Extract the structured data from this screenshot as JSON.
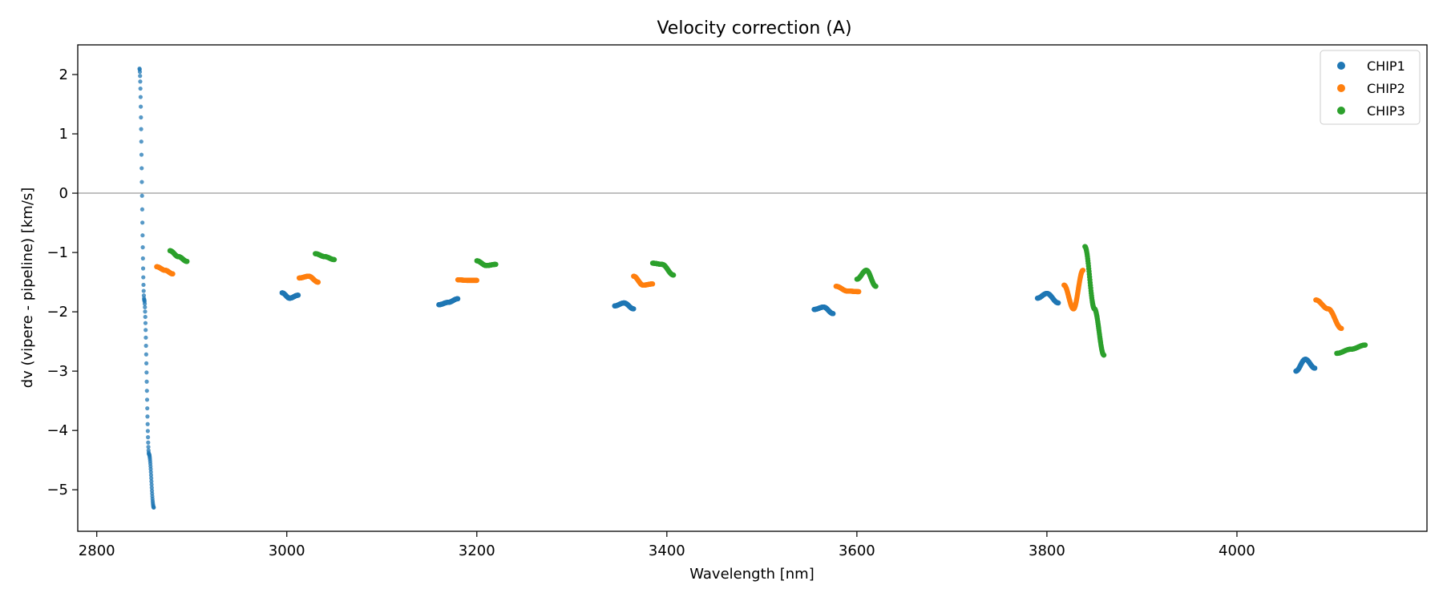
{
  "chart_data": {
    "type": "scatter",
    "title": "Velocity correction (A)",
    "xlabel": "Wavelength [nm]",
    "ylabel": "dv (vipere - pipeline) [km/s]",
    "xlim": [
      2780,
      4200
    ],
    "ylim": [
      -5.7,
      2.5
    ],
    "xticks": [
      2800,
      3000,
      3200,
      3400,
      3600,
      3800,
      4000
    ],
    "yticks": [
      2,
      1,
      0,
      -1,
      -2,
      -3,
      -4,
      -5
    ],
    "xtick_labels": [
      "2800",
      "3000",
      "3200",
      "3400",
      "3600",
      "3800",
      "4000"
    ],
    "ytick_labels": [
      "2",
      "1",
      "0",
      "−1",
      "−2",
      "−3",
      "−4",
      "−5"
    ],
    "reference_line_y": 0,
    "grid": false,
    "legend": {
      "position": "top-right",
      "entries": [
        "CHIP1",
        "CHIP2",
        "CHIP3"
      ]
    },
    "colors": {
      "CHIP1": "#1f77b4",
      "CHIP2": "#ff7f0e",
      "CHIP3": "#2ca02c"
    },
    "series": [
      {
        "name": "CHIP1",
        "segments": [
          {
            "x": [
              2845,
              2850,
              2855,
              2860
            ],
            "y": [
              2.1,
              -1.8,
              -4.4,
              -5.3
            ]
          },
          {
            "x": [
              2995,
              3003,
              3012
            ],
            "y": [
              -1.68,
              -1.77,
              -1.72
            ]
          },
          {
            "x": [
              3160,
              3170,
              3180
            ],
            "y": [
              -1.88,
              -1.84,
              -1.78
            ]
          },
          {
            "x": [
              3345,
              3355,
              3365
            ],
            "y": [
              -1.9,
              -1.85,
              -1.95
            ]
          },
          {
            "x": [
              3555,
              3565,
              3575
            ],
            "y": [
              -1.96,
              -1.92,
              -2.03
            ]
          },
          {
            "x": [
              3790,
              3800,
              3812
            ],
            "y": [
              -1.77,
              -1.69,
              -1.85
            ]
          },
          {
            "x": [
              4062,
              4072,
              4082
            ],
            "y": [
              -3.0,
              -2.8,
              -2.95
            ]
          }
        ]
      },
      {
        "name": "CHIP2",
        "segments": [
          {
            "x": [
              2863,
              2872,
              2880
            ],
            "y": [
              -1.24,
              -1.3,
              -1.36
            ]
          },
          {
            "x": [
              3013,
              3023,
              3033
            ],
            "y": [
              -1.43,
              -1.4,
              -1.5
            ]
          },
          {
            "x": [
              3180,
              3190,
              3200
            ],
            "y": [
              -1.46,
              -1.47,
              -1.47
            ]
          },
          {
            "x": [
              3365,
              3375,
              3385
            ],
            "y": [
              -1.4,
              -1.55,
              -1.53
            ]
          },
          {
            "x": [
              3578,
              3590,
              3602
            ],
            "y": [
              -1.57,
              -1.65,
              -1.66
            ]
          },
          {
            "x": [
              3818,
              3828,
              3838
            ],
            "y": [
              -1.55,
              -1.95,
              -1.3
            ]
          },
          {
            "x": [
              4083,
              4096,
              4110
            ],
            "y": [
              -1.8,
              -1.95,
              -2.28
            ]
          }
        ]
      },
      {
        "name": "CHIP3",
        "segments": [
          {
            "x": [
              2877,
              2886,
              2895
            ],
            "y": [
              -0.97,
              -1.07,
              -1.15
            ]
          },
          {
            "x": [
              3030,
              3040,
              3050
            ],
            "y": [
              -1.02,
              -1.07,
              -1.12
            ]
          },
          {
            "x": [
              3200,
              3210,
              3220
            ],
            "y": [
              -1.14,
              -1.22,
              -1.2
            ]
          },
          {
            "x": [
              3385,
              3395,
              3407
            ],
            "y": [
              -1.18,
              -1.2,
              -1.38
            ]
          },
          {
            "x": [
              3600,
              3610,
              3620
            ],
            "y": [
              -1.45,
              -1.3,
              -1.57
            ]
          },
          {
            "x": [
              3840,
              3850,
              3860
            ],
            "y": [
              -0.9,
              -1.95,
              -2.73
            ]
          },
          {
            "x": [
              4105,
              4120,
              4135
            ],
            "y": [
              -2.7,
              -2.63,
              -2.56
            ]
          }
        ]
      }
    ]
  }
}
